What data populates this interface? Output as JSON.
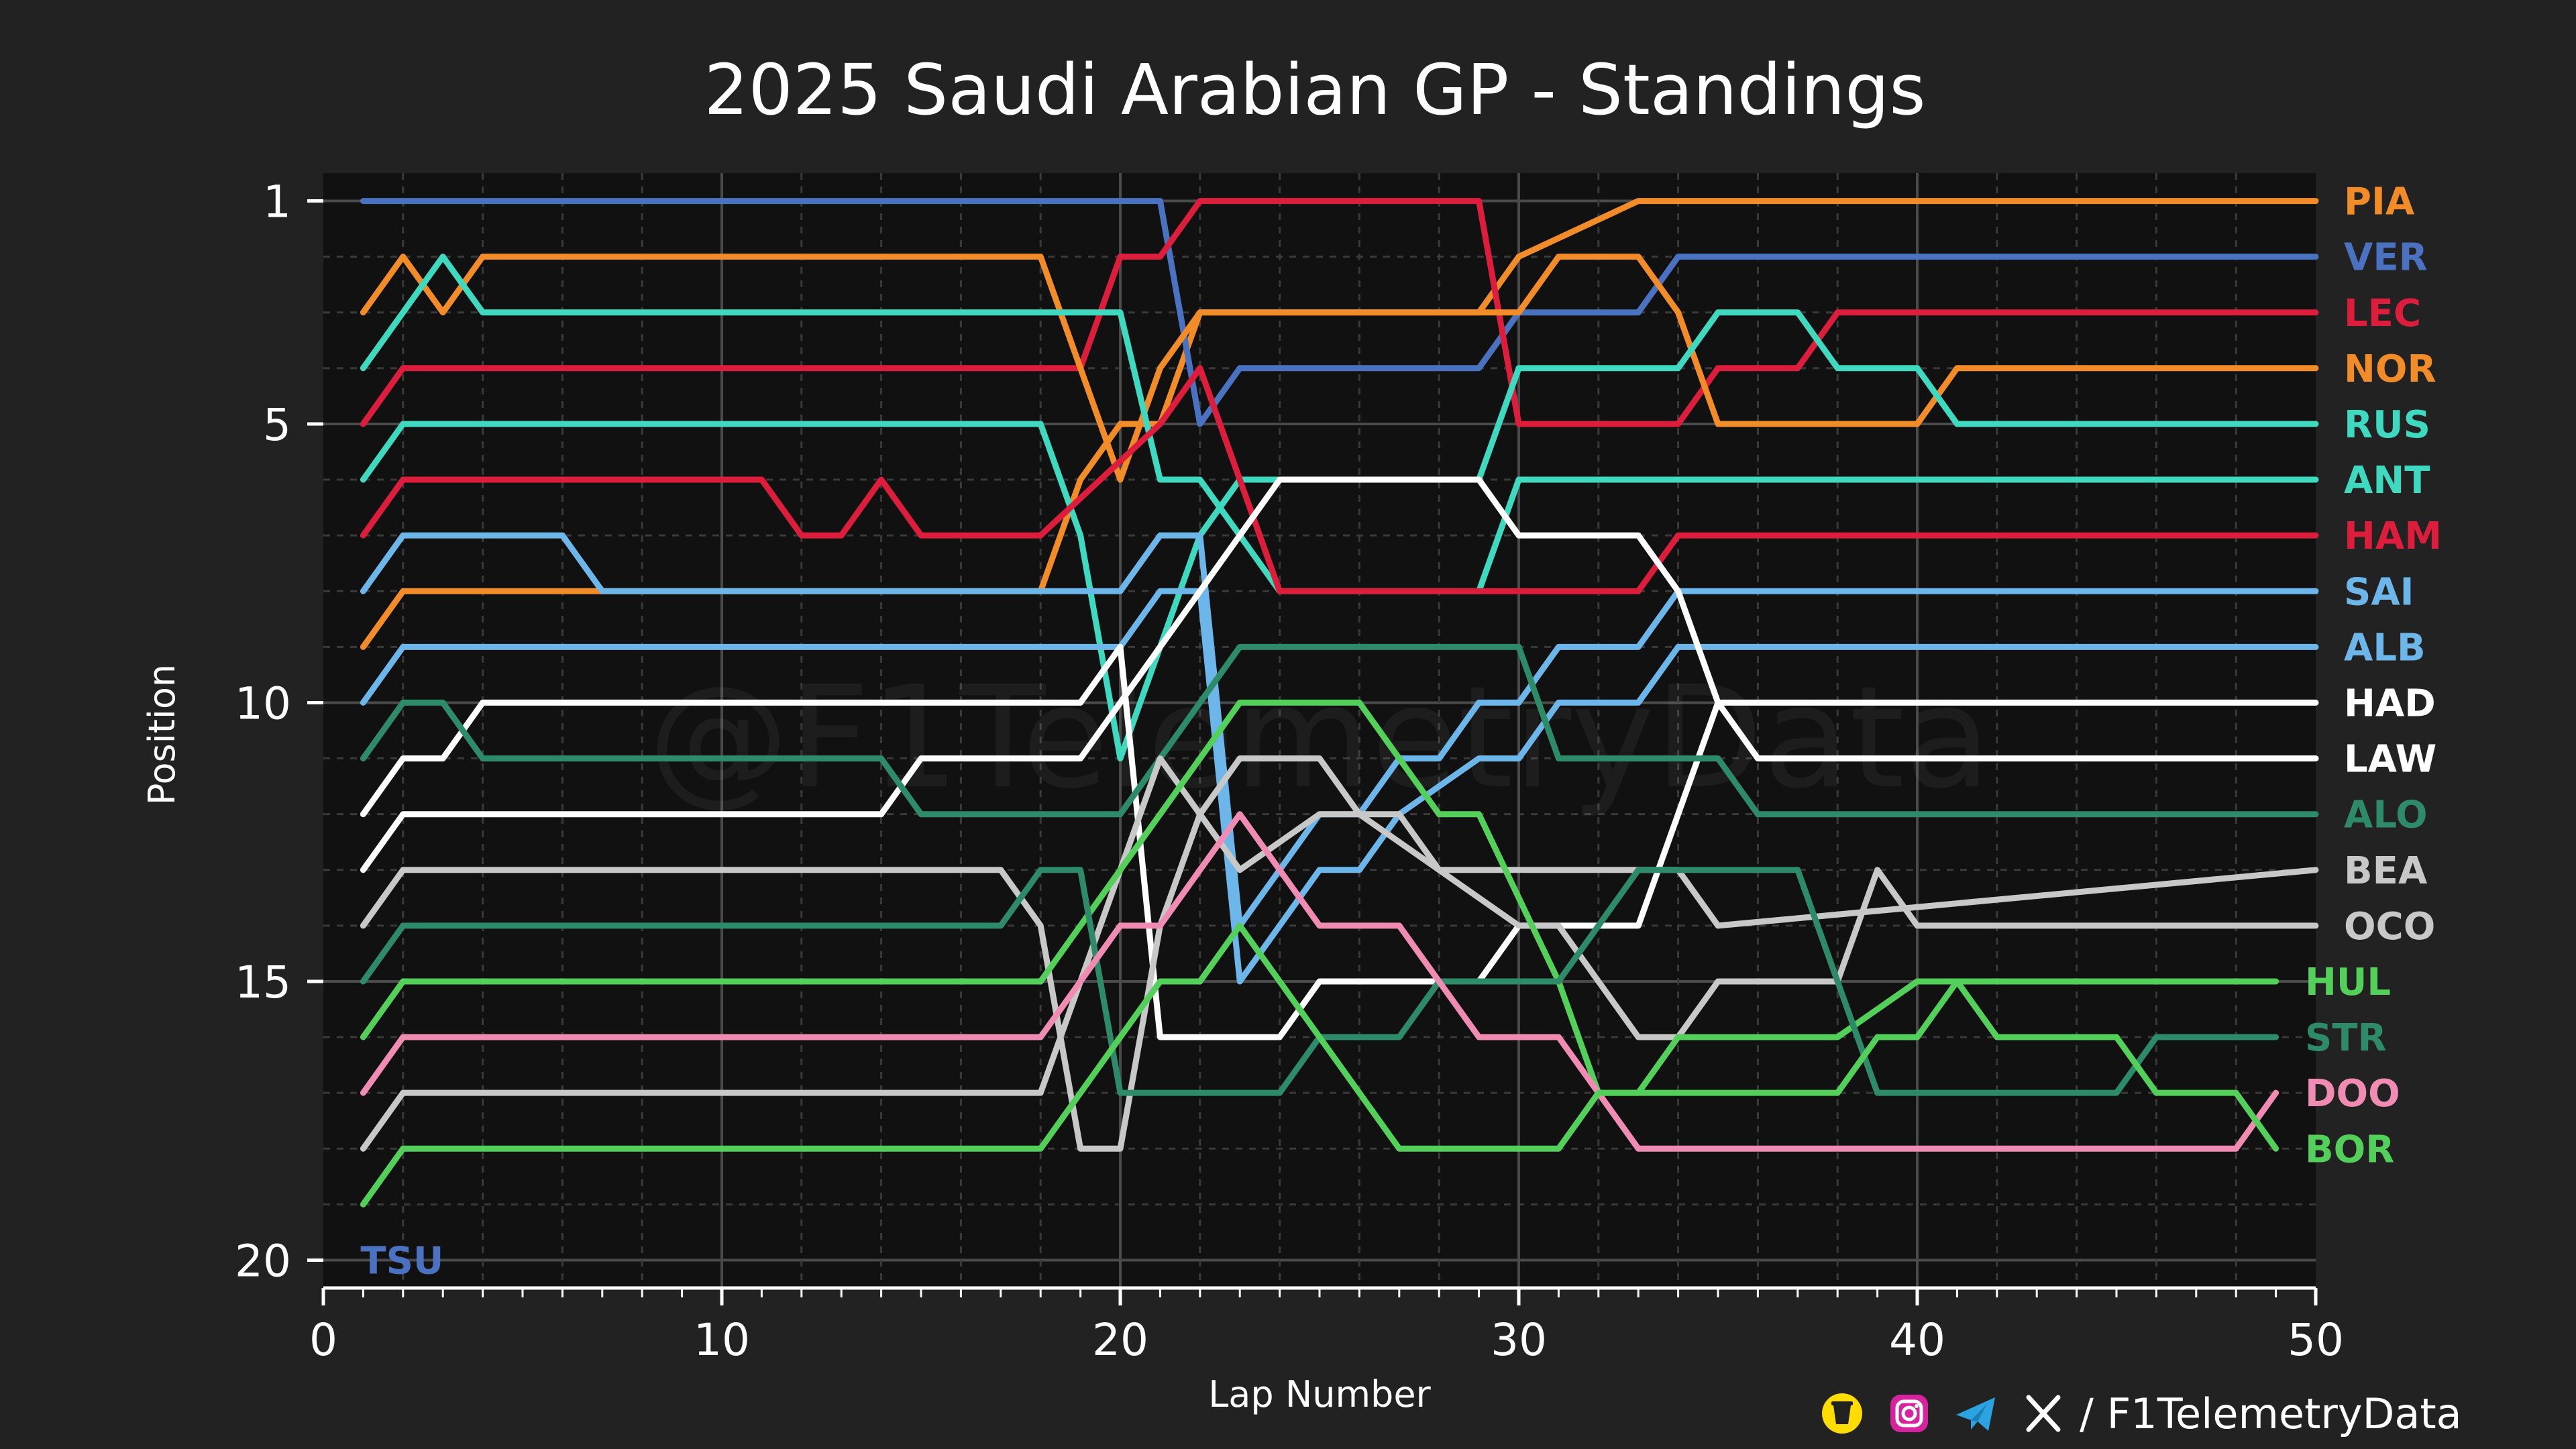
{
  "chart_data": {
    "type": "line",
    "title": "2025 Saudi Arabian GP - Standings",
    "xlabel": "Lap Number",
    "ylabel": "Position",
    "xlim": [
      0,
      50
    ],
    "ylim": [
      20.5,
      0.5
    ],
    "xticks": [
      0,
      10,
      20,
      30,
      40,
      50
    ],
    "yticks": [
      1,
      5,
      10,
      15,
      20
    ],
    "grid": true,
    "series": [
      {
        "name": "PIA",
        "color": "#f28c28",
        "x": [
          1,
          2,
          3,
          4,
          18,
          19,
          20,
          21,
          22,
          29,
          30,
          33,
          50
        ],
        "y": [
          9,
          8,
          8,
          8,
          8,
          6,
          5,
          5,
          3,
          3,
          2,
          1,
          1
        ]
      },
      {
        "name": "VER",
        "color": "#4a72c0",
        "x": [
          1,
          21,
          22,
          23,
          29,
          30,
          33,
          34,
          35,
          50
        ],
        "y": [
          1,
          1,
          5,
          4,
          4,
          3,
          3,
          2,
          2,
          2
        ]
      },
      {
        "name": "LEC",
        "color": "#dc1e3c",
        "x": [
          1,
          2,
          19,
          20,
          21,
          22,
          29,
          30,
          34,
          35,
          37,
          38,
          50
        ],
        "y": [
          5,
          4,
          4,
          2,
          2,
          1,
          1,
          5,
          5,
          4,
          4,
          3,
          3
        ]
      },
      {
        "name": "NOR",
        "color": "#f28c28",
        "x": [
          1,
          2,
          3,
          4,
          18,
          19,
          20,
          21,
          22,
          30,
          31,
          33,
          34,
          35,
          40,
          41,
          50
        ],
        "y": [
          3,
          2,
          3,
          2,
          2,
          4,
          6,
          4,
          3,
          3,
          2,
          2,
          3,
          5,
          5,
          4,
          4
        ]
      },
      {
        "name": "RUS",
        "color": "#3fd9c0",
        "x": [
          1,
          2,
          18,
          19,
          20,
          21,
          22,
          23,
          29,
          30,
          34,
          35,
          37,
          38,
          40,
          41,
          50
        ],
        "y": [
          6,
          5,
          5,
          7,
          11,
          9,
          7,
          6,
          6,
          4,
          4,
          3,
          3,
          4,
          4,
          5,
          5
        ]
      },
      {
        "name": "ANT",
        "color": "#3fd9c0",
        "x": [
          1,
          2,
          3,
          4,
          20,
          21,
          22,
          24,
          29,
          30,
          50
        ],
        "y": [
          4,
          3,
          2,
          3,
          3,
          6,
          6,
          8,
          8,
          6,
          6
        ]
      },
      {
        "name": "HAM",
        "color": "#dc1e3c",
        "x": [
          1,
          2,
          11,
          12,
          13,
          14,
          15,
          18,
          21,
          22,
          24,
          33,
          34,
          50
        ],
        "y": [
          7,
          6,
          6,
          7,
          7,
          6,
          7,
          7,
          5,
          4,
          8,
          8,
          7,
          7
        ]
      },
      {
        "name": "SAI",
        "color": "#6cb6ea",
        "x": [
          1,
          2,
          6,
          7,
          20,
          21,
          22,
          23,
          24,
          25,
          26,
          27,
          28,
          29,
          30,
          31,
          33,
          34,
          50
        ],
        "y": [
          8,
          7,
          7,
          8,
          8,
          7,
          7,
          14,
          13,
          12,
          12,
          11,
          11,
          10,
          10,
          9,
          9,
          8,
          8
        ]
      },
      {
        "name": "ALB",
        "color": "#6cb6ea",
        "x": [
          1,
          2,
          20,
          21,
          22,
          23,
          25,
          26,
          27,
          29,
          30,
          31,
          32,
          33,
          34,
          35,
          50
        ],
        "y": [
          10,
          9,
          9,
          8,
          8,
          15,
          13,
          13,
          12,
          11,
          11,
          10,
          10,
          10,
          9,
          9,
          9
        ]
      },
      {
        "name": "HAD",
        "color": "#ffffff",
        "x": [
          1,
          2,
          3,
          4,
          19,
          20,
          21,
          24,
          25,
          29,
          30,
          33,
          34,
          35,
          50
        ],
        "y": [
          12,
          11,
          11,
          10,
          10,
          9,
          16,
          16,
          15,
          15,
          14,
          14,
          12,
          10,
          10
        ]
      },
      {
        "name": "LAW",
        "color": "#ffffff",
        "x": [
          1,
          2,
          14,
          15,
          19,
          20,
          21,
          22,
          23,
          24,
          29,
          30,
          33,
          34,
          35,
          36,
          50
        ],
        "y": [
          13,
          12,
          12,
          11,
          11,
          10,
          9,
          8,
          7,
          6,
          6,
          7,
          7,
          8,
          10,
          11,
          11
        ]
      },
      {
        "name": "ALO",
        "color": "#2e8b6a",
        "x": [
          1,
          2,
          3,
          4,
          14,
          15,
          20,
          22,
          23,
          29,
          30,
          31,
          35,
          36,
          38,
          39,
          50
        ],
        "y": [
          11,
          10,
          10,
          11,
          11,
          12,
          12,
          10,
          9,
          9,
          9,
          11,
          11,
          12,
          12,
          12,
          12
        ]
      },
      {
        "name": "BEA",
        "color": "#c8c8c8",
        "x": [
          1,
          2,
          17,
          18,
          19,
          20,
          21,
          22,
          23,
          24,
          25,
          26,
          27,
          28,
          30,
          33,
          34,
          35,
          50
        ],
        "y": [
          14,
          13,
          13,
          14,
          18,
          18,
          14,
          12,
          11,
          11,
          11,
          12,
          12,
          13,
          13,
          13,
          13,
          14,
          13
        ]
      },
      {
        "name": "OCO",
        "color": "#c8c8c8",
        "x": [
          1,
          2,
          18,
          19,
          20,
          21,
          22,
          23,
          25,
          26,
          30,
          31,
          33,
          34,
          35,
          38,
          39,
          40,
          50
        ],
        "y": [
          18,
          17,
          17,
          15,
          13,
          11,
          12,
          13,
          12,
          12,
          14,
          14,
          16,
          16,
          15,
          15,
          13,
          14,
          14
        ]
      },
      {
        "name": "HUL",
        "color": "#52d05a",
        "x": [
          1,
          2,
          18,
          19,
          20,
          21,
          22,
          23,
          24,
          25,
          26,
          27,
          28,
          29,
          31,
          32,
          33,
          34,
          38,
          40,
          41,
          42,
          49
        ],
        "y": [
          16,
          15,
          15,
          14,
          13,
          12,
          11,
          10,
          10,
          10,
          10,
          11,
          12,
          12,
          15,
          17,
          17,
          16,
          16,
          15,
          15,
          15,
          15
        ]
      },
      {
        "name": "STR",
        "color": "#2e8b6a",
        "x": [
          1,
          2,
          17,
          18,
          19,
          20,
          24,
          25,
          26,
          27,
          28,
          29,
          31,
          32,
          33,
          36,
          37,
          38,
          39,
          40,
          45,
          46,
          49
        ],
        "y": [
          15,
          14,
          14,
          13,
          13,
          17,
          17,
          16,
          16,
          16,
          15,
          15,
          15,
          14,
          13,
          13,
          13,
          15,
          17,
          17,
          17,
          16,
          16
        ]
      },
      {
        "name": "DOO",
        "color": "#f08cb4",
        "x": [
          1,
          2,
          18,
          19,
          20,
          21,
          22,
          23,
          24,
          25,
          26,
          27,
          28,
          29,
          31,
          32,
          33,
          48,
          49
        ],
        "y": [
          17,
          16,
          16,
          15,
          14,
          14,
          13,
          12,
          13,
          14,
          14,
          14,
          15,
          16,
          16,
          17,
          18,
          18,
          17
        ]
      },
      {
        "name": "BOR",
        "color": "#52d05a",
        "x": [
          1,
          2,
          18,
          19,
          20,
          21,
          22,
          23,
          24,
          25,
          26,
          27,
          28,
          29,
          30,
          31,
          32,
          33,
          38,
          39,
          40,
          41,
          42,
          45,
          46,
          48,
          49
        ],
        "y": [
          19,
          18,
          18,
          17,
          16,
          15,
          15,
          14,
          15,
          16,
          17,
          18,
          18,
          18,
          18,
          18,
          17,
          17,
          17,
          16,
          16,
          15,
          16,
          16,
          17,
          17,
          18
        ]
      }
    ],
    "labels": [
      {
        "code": "PIA",
        "position": 1,
        "color": "#f28c28"
      },
      {
        "code": "VER",
        "position": 2,
        "color": "#4a72c0"
      },
      {
        "code": "LEC",
        "position": 3,
        "color": "#dc1e3c"
      },
      {
        "code": "NOR",
        "position": 4,
        "color": "#f28c28"
      },
      {
        "code": "RUS",
        "position": 5,
        "color": "#3fd9c0"
      },
      {
        "code": "ANT",
        "position": 6,
        "color": "#3fd9c0"
      },
      {
        "code": "HAM",
        "position": 7,
        "color": "#dc1e3c"
      },
      {
        "code": "SAI",
        "position": 8,
        "color": "#6cb6ea"
      },
      {
        "code": "ALB",
        "position": 9,
        "color": "#6cb6ea"
      },
      {
        "code": "HAD",
        "position": 10,
        "color": "#ffffff"
      },
      {
        "code": "LAW",
        "position": 11,
        "color": "#ffffff"
      },
      {
        "code": "ALO",
        "position": 12,
        "color": "#2e8b6a"
      },
      {
        "code": "BEA",
        "position": 13,
        "color": "#c8c8c8"
      },
      {
        "code": "OCO",
        "position": 14,
        "color": "#c8c8c8"
      },
      {
        "code": "HUL",
        "position": 15,
        "color": "#52d05a"
      },
      {
        "code": "STR",
        "position": 16,
        "color": "#2e8b6a"
      },
      {
        "code": "DOO",
        "position": 17,
        "color": "#f08cb4"
      },
      {
        "code": "BOR",
        "position": 18,
        "color": "#52d05a"
      }
    ],
    "retired": {
      "code": "TSU",
      "position": 20,
      "lap": 1,
      "color": "#4a72c0"
    },
    "watermark": "@F1TelemetryData"
  },
  "footer": {
    "handle": "/ F1TelemetryData",
    "icons": [
      "buymeacoffee-icon",
      "instagram-icon",
      "telegram-icon",
      "x-icon"
    ]
  }
}
